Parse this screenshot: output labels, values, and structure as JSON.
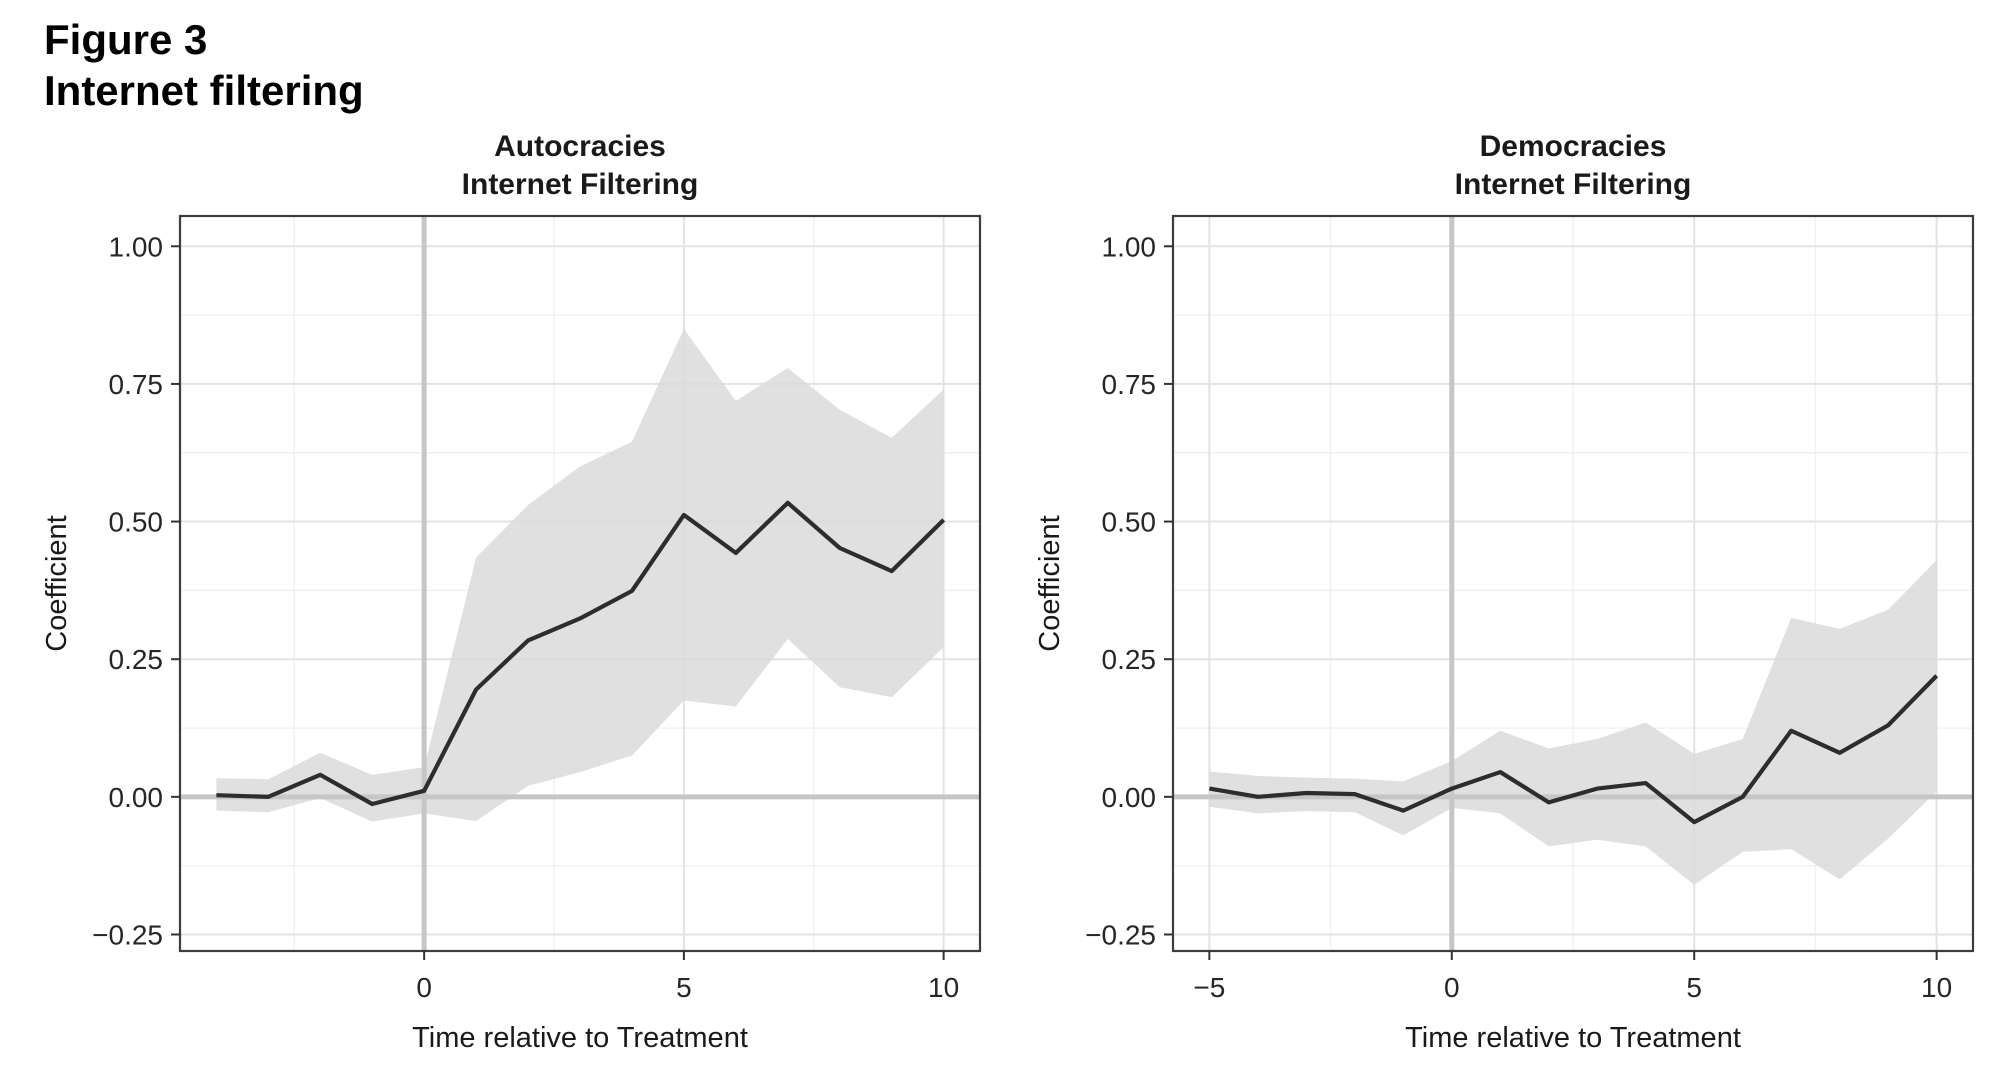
{
  "figure": {
    "title_line1": "Figure 3",
    "title_line2": "Internet filtering"
  },
  "colors": {
    "background": "#ffffff",
    "figure_title_text": "#000000",
    "panel_border": "#3d3d3d",
    "grid_major": "#e3e3e3",
    "grid_minor": "#f0f0f0",
    "reference_line": "#c6c6c6",
    "confidence_band": "#d9d9d9",
    "coefficient_line": "#2d2d2d",
    "tick_mark": "#333333",
    "tick_label": "#262626",
    "axis_title": "#1a1a1a",
    "panel_title": "#1a1a1a"
  },
  "chart_data": [
    {
      "type": "line",
      "title": "Autocracies",
      "subtitle": "Internet Filtering",
      "xlabel": "Time relative to Treatment",
      "ylabel": "Coefficient",
      "legend": "none",
      "grid": true,
      "x": [
        -4,
        -3,
        -2,
        -1,
        0,
        1,
        2,
        3,
        4,
        5,
        6,
        7,
        8,
        9,
        10
      ],
      "series": [
        {
          "name": "coefficient",
          "values": [
            0.003,
            0.0,
            0.04,
            -0.013,
            0.011,
            0.195,
            0.284,
            0.324,
            0.374,
            0.512,
            0.443,
            0.534,
            0.452,
            0.41,
            0.503
          ]
        }
      ],
      "band": {
        "name": "95% confidence interval",
        "upper": [
          0.034,
          0.032,
          0.08,
          0.04,
          0.054,
          0.435,
          0.53,
          0.6,
          0.645,
          0.85,
          0.719,
          0.779,
          0.703,
          0.652,
          0.74
        ],
        "lower": [
          -0.025,
          -0.028,
          -0.002,
          -0.045,
          -0.03,
          -0.044,
          0.02,
          0.045,
          0.075,
          0.175,
          0.164,
          0.287,
          0.199,
          0.181,
          0.272
        ]
      },
      "xlim": [
        -4.7,
        10.7
      ],
      "ylim": [
        -0.28,
        1.055
      ],
      "xticks": {
        "values": [
          0,
          5,
          10
        ],
        "labels": [
          "0",
          "5",
          "10"
        ]
      },
      "yticks": {
        "values": [
          1.0,
          0.75,
          0.5,
          0.25,
          0.0,
          -0.25
        ],
        "labels": [
          "1.00",
          "0.75",
          "0.50",
          "0.25",
          "0.00",
          "−0.25"
        ]
      },
      "xticks_minor": [
        -2.5,
        2.5,
        7.5
      ],
      "yticks_minor": [
        0.875,
        0.625,
        0.375,
        0.125,
        -0.125
      ],
      "ref_lines": {
        "x": 0,
        "y": 0
      }
    },
    {
      "type": "line",
      "title": "Democracies",
      "subtitle": "Internet Filtering",
      "xlabel": "Time relative to Treatment",
      "ylabel": "Coefficient",
      "legend": "none",
      "grid": true,
      "x": [
        -5,
        -4,
        -3,
        -2,
        -1,
        0,
        1,
        2,
        3,
        4,
        5,
        6,
        7,
        8,
        9,
        10
      ],
      "series": [
        {
          "name": "coefficient",
          "values": [
            0.015,
            0.0,
            0.007,
            0.005,
            -0.025,
            0.015,
            0.045,
            -0.01,
            0.015,
            0.025,
            -0.046,
            0.0,
            0.12,
            0.08,
            0.13,
            0.22
          ]
        }
      ],
      "band": {
        "name": "95% confidence interval",
        "upper": [
          0.046,
          0.038,
          0.035,
          0.033,
          0.028,
          0.065,
          0.12,
          0.088,
          0.105,
          0.135,
          0.078,
          0.105,
          0.325,
          0.305,
          0.34,
          0.43
        ],
        "lower": [
          -0.018,
          -0.03,
          -0.026,
          -0.028,
          -0.07,
          -0.02,
          -0.03,
          -0.09,
          -0.078,
          -0.09,
          -0.16,
          -0.1,
          -0.095,
          -0.15,
          -0.076,
          0.01
        ]
      },
      "xlim": [
        -5.75,
        10.75
      ],
      "ylim": [
        -0.28,
        1.055
      ],
      "xticks": {
        "values": [
          -5,
          0,
          5,
          10
        ],
        "labels": [
          "−5",
          "0",
          "5",
          "10"
        ]
      },
      "yticks": {
        "values": [
          1.0,
          0.75,
          0.5,
          0.25,
          0.0,
          -0.25
        ],
        "labels": [
          "1.00",
          "0.75",
          "0.50",
          "0.25",
          "0.00",
          "−0.25"
        ]
      },
      "xticks_minor": [
        -2.5,
        2.5,
        7.5
      ],
      "yticks_minor": [
        0.875,
        0.625,
        0.375,
        0.125,
        -0.125
      ],
      "ref_lines": {
        "x": 0,
        "y": 0
      }
    }
  ]
}
